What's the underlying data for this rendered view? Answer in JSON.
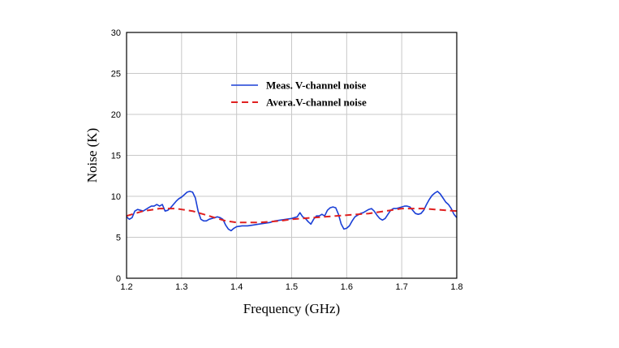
{
  "chart_data": {
    "type": "line",
    "title": "",
    "xlabel": "Frequency (GHz)",
    "ylabel": "Noise (K)",
    "xlim": [
      1.2,
      1.8
    ],
    "ylim": [
      0,
      30
    ],
    "xticks": [
      1.2,
      1.3,
      1.4,
      1.5,
      1.6,
      1.7,
      1.8
    ],
    "yticks": [
      0,
      5,
      10,
      15,
      20,
      25,
      30
    ],
    "xtick_labels": [
      "1.2",
      "1.3",
      "1.4",
      "1.5",
      "1.6",
      "1.7",
      "1.8"
    ],
    "ytick_labels": [
      "0",
      "5",
      "10",
      "15",
      "20",
      "25",
      "30"
    ],
    "grid": true,
    "legend_position": "upper-center",
    "series": [
      {
        "name": "Meas. V-channel noise",
        "color": "#1a3fd6",
        "style": "solid",
        "points": [
          [
            1.2,
            7.5
          ],
          [
            1.205,
            7.2
          ],
          [
            1.21,
            7.4
          ],
          [
            1.215,
            8.2
          ],
          [
            1.22,
            8.4
          ],
          [
            1.225,
            8.3
          ],
          [
            1.23,
            8.2
          ],
          [
            1.235,
            8.4
          ],
          [
            1.24,
            8.6
          ],
          [
            1.245,
            8.8
          ],
          [
            1.25,
            8.8
          ],
          [
            1.255,
            9.0
          ],
          [
            1.26,
            8.8
          ],
          [
            1.265,
            9.0
          ],
          [
            1.27,
            8.2
          ],
          [
            1.275,
            8.3
          ],
          [
            1.28,
            8.6
          ],
          [
            1.285,
            9.0
          ],
          [
            1.29,
            9.4
          ],
          [
            1.295,
            9.7
          ],
          [
            1.3,
            9.9
          ],
          [
            1.305,
            10.2
          ],
          [
            1.31,
            10.5
          ],
          [
            1.315,
            10.6
          ],
          [
            1.32,
            10.5
          ],
          [
            1.325,
            9.8
          ],
          [
            1.33,
            8.2
          ],
          [
            1.335,
            7.2
          ],
          [
            1.34,
            7.0
          ],
          [
            1.345,
            7.0
          ],
          [
            1.35,
            7.2
          ],
          [
            1.355,
            7.3
          ],
          [
            1.36,
            7.4
          ],
          [
            1.365,
            7.5
          ],
          [
            1.37,
            7.4
          ],
          [
            1.375,
            7.2
          ],
          [
            1.38,
            6.5
          ],
          [
            1.385,
            6.0
          ],
          [
            1.39,
            5.8
          ],
          [
            1.395,
            6.1
          ],
          [
            1.4,
            6.3
          ],
          [
            1.41,
            6.4
          ],
          [
            1.42,
            6.4
          ],
          [
            1.43,
            6.5
          ],
          [
            1.44,
            6.6
          ],
          [
            1.45,
            6.7
          ],
          [
            1.46,
            6.8
          ],
          [
            1.47,
            7.0
          ],
          [
            1.48,
            7.1
          ],
          [
            1.49,
            7.2
          ],
          [
            1.5,
            7.3
          ],
          [
            1.505,
            7.4
          ],
          [
            1.51,
            7.5
          ],
          [
            1.515,
            8.0
          ],
          [
            1.52,
            7.5
          ],
          [
            1.525,
            7.3
          ],
          [
            1.53,
            6.9
          ],
          [
            1.535,
            6.6
          ],
          [
            1.54,
            7.2
          ],
          [
            1.545,
            7.6
          ],
          [
            1.55,
            7.6
          ],
          [
            1.555,
            7.8
          ],
          [
            1.56,
            7.6
          ],
          [
            1.565,
            8.3
          ],
          [
            1.57,
            8.6
          ],
          [
            1.575,
            8.7
          ],
          [
            1.58,
            8.6
          ],
          [
            1.585,
            7.8
          ],
          [
            1.59,
            6.6
          ],
          [
            1.595,
            6.0
          ],
          [
            1.6,
            6.1
          ],
          [
            1.605,
            6.4
          ],
          [
            1.61,
            7.0
          ],
          [
            1.615,
            7.5
          ],
          [
            1.62,
            7.7
          ],
          [
            1.625,
            7.9
          ],
          [
            1.63,
            8.0
          ],
          [
            1.635,
            8.2
          ],
          [
            1.64,
            8.4
          ],
          [
            1.645,
            8.5
          ],
          [
            1.65,
            8.2
          ],
          [
            1.655,
            7.7
          ],
          [
            1.66,
            7.3
          ],
          [
            1.665,
            7.1
          ],
          [
            1.67,
            7.3
          ],
          [
            1.675,
            7.8
          ],
          [
            1.68,
            8.3
          ],
          [
            1.685,
            8.5
          ],
          [
            1.69,
            8.5
          ],
          [
            1.695,
            8.6
          ],
          [
            1.7,
            8.7
          ],
          [
            1.705,
            8.8
          ],
          [
            1.71,
            8.8
          ],
          [
            1.715,
            8.7
          ],
          [
            1.72,
            8.3
          ],
          [
            1.725,
            7.9
          ],
          [
            1.73,
            7.8
          ],
          [
            1.735,
            7.9
          ],
          [
            1.74,
            8.3
          ],
          [
            1.745,
            9.0
          ],
          [
            1.75,
            9.6
          ],
          [
            1.755,
            10.1
          ],
          [
            1.76,
            10.4
          ],
          [
            1.765,
            10.6
          ],
          [
            1.77,
            10.3
          ],
          [
            1.775,
            9.8
          ],
          [
            1.78,
            9.3
          ],
          [
            1.785,
            9.0
          ],
          [
            1.79,
            8.5
          ],
          [
            1.795,
            7.8
          ],
          [
            1.8,
            7.4
          ]
        ]
      },
      {
        "name": "Avera.V-channel noise",
        "color": "#e02020",
        "style": "dashed",
        "points": [
          [
            1.2,
            7.6
          ],
          [
            1.21,
            7.8
          ],
          [
            1.22,
            8.0
          ],
          [
            1.23,
            8.2
          ],
          [
            1.24,
            8.3
          ],
          [
            1.25,
            8.4
          ],
          [
            1.26,
            8.5
          ],
          [
            1.27,
            8.5
          ],
          [
            1.28,
            8.5
          ],
          [
            1.29,
            8.5
          ],
          [
            1.3,
            8.4
          ],
          [
            1.31,
            8.3
          ],
          [
            1.32,
            8.2
          ],
          [
            1.33,
            8.0
          ],
          [
            1.34,
            7.8
          ],
          [
            1.35,
            7.6
          ],
          [
            1.36,
            7.4
          ],
          [
            1.37,
            7.2
          ],
          [
            1.38,
            7.0
          ],
          [
            1.39,
            6.9
          ],
          [
            1.4,
            6.8
          ],
          [
            1.42,
            6.8
          ],
          [
            1.44,
            6.8
          ],
          [
            1.46,
            6.9
          ],
          [
            1.48,
            7.0
          ],
          [
            1.5,
            7.2
          ],
          [
            1.52,
            7.3
          ],
          [
            1.54,
            7.4
          ],
          [
            1.56,
            7.5
          ],
          [
            1.58,
            7.6
          ],
          [
            1.6,
            7.7
          ],
          [
            1.62,
            7.8
          ],
          [
            1.64,
            7.9
          ],
          [
            1.66,
            8.1
          ],
          [
            1.68,
            8.3
          ],
          [
            1.7,
            8.5
          ],
          [
            1.71,
            8.5
          ],
          [
            1.72,
            8.5
          ],
          [
            1.74,
            8.5
          ],
          [
            1.76,
            8.4
          ],
          [
            1.78,
            8.3
          ],
          [
            1.8,
            8.2
          ]
        ]
      }
    ]
  }
}
